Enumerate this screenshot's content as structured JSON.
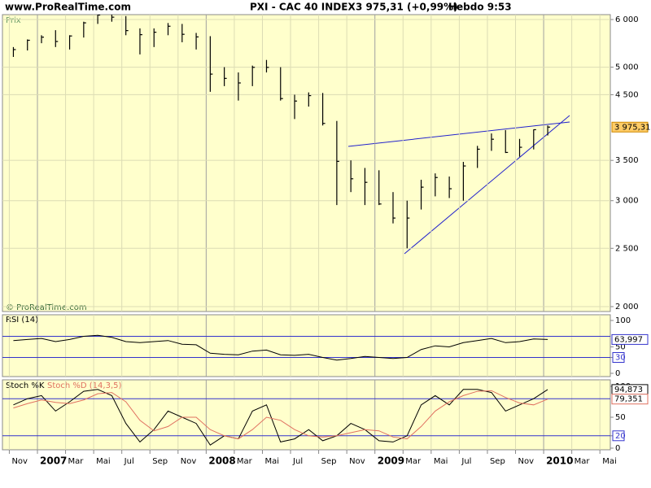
{
  "header": {
    "site": "www.ProRealTime.com",
    "instrument": "PXI - CAC 40 INDEX",
    "quote": "3 975,31 (+0,99%)",
    "period": "Hebdo  9:53"
  },
  "chart_data": [
    {
      "type": "ohlc",
      "label": "Prix",
      "watermark": "© ProRealTime.com",
      "log": true,
      "grid": true,
      "color": "#000000",
      "x": [
        "2006-11",
        "2006-12",
        "2007-01",
        "2007-02",
        "2007-03",
        "2007-04",
        "2007-05",
        "2007-06",
        "2007-07",
        "2007-08",
        "2007-09",
        "2007-10",
        "2007-11",
        "2007-12",
        "2008-01",
        "2008-02",
        "2008-03",
        "2008-04",
        "2008-05",
        "2008-06",
        "2008-07",
        "2008-08",
        "2008-09",
        "2008-10",
        "2008-11",
        "2008-12",
        "2009-01",
        "2009-02",
        "2009-03",
        "2009-04",
        "2009-05",
        "2009-06",
        "2009-07",
        "2009-08",
        "2009-09",
        "2009-10",
        "2009-11",
        "2009-12",
        "2010-01",
        "2010-02",
        "2010-03",
        "2010-04",
        "2010-05"
      ],
      "high": [
        5400,
        5560,
        5650,
        5760,
        5650,
        5950,
        6170,
        6160,
        6080,
        5800,
        5800,
        5920,
        5900,
        5700,
        5630,
        5000,
        4900,
        5030,
        5140,
        5000,
        4500,
        4540,
        4530,
        4070,
        3500,
        3400,
        3370,
        3100,
        3000,
        3250,
        3330,
        3290,
        3480,
        3700,
        3880,
        3930,
        3800,
        3940,
        4000,
        null,
        null,
        null,
        null
      ],
      "low": [
        5200,
        5330,
        5480,
        5400,
        5350,
        5600,
        5900,
        5950,
        5650,
        5250,
        5400,
        5650,
        5500,
        5350,
        4550,
        4650,
        4400,
        4650,
        4900,
        4400,
        4100,
        4300,
        4000,
        2950,
        3100,
        2950,
        2950,
        2750,
        2500,
        2900,
        3050,
        3030,
        3000,
        3400,
        3630,
        3600,
        3550,
        3650,
        3850,
        null,
        null,
        null,
        null
      ],
      "close": [
        5348,
        5542,
        5608,
        5516,
        5634,
        5924,
        6104,
        6054,
        5751,
        5662,
        5715,
        5848,
        5670,
        5614,
        4869,
        4790,
        4707,
        4997,
        4996,
        4434,
        4392,
        4484,
        4032,
        3487,
        3262,
        3218,
        2962,
        2807,
        2807,
        3159,
        3278,
        3140,
        3426,
        3653,
        3795,
        3608,
        3680,
        3936,
        3975.31,
        null,
        null,
        null,
        null
      ],
      "close_label": "3 975,31",
      "close_label_color": "#ffcc66",
      "ylim": [
        2000,
        6000
      ],
      "yticks": [
        {
          "value": 2000,
          "label": "2 000"
        },
        {
          "value": 2500,
          "label": "2 500"
        },
        {
          "value": 3000,
          "label": "3 000"
        },
        {
          "value": 3500,
          "label": "3 500"
        },
        {
          "value": 4500,
          "label": "4 500"
        },
        {
          "value": 5000,
          "label": "5 000"
        },
        {
          "value": 6000,
          "label": "6 000"
        }
      ]
    },
    {
      "type": "line",
      "title": "RSI (14)",
      "color": "#000000",
      "level_color": "#3333cc",
      "values": [
        62,
        64,
        66,
        60,
        64,
        70,
        72,
        68,
        60,
        58,
        60,
        62,
        55,
        54,
        38,
        36,
        35,
        42,
        44,
        35,
        34,
        36,
        30,
        25,
        28,
        32,
        30,
        28,
        30,
        45,
        52,
        50,
        58,
        62,
        66,
        58,
        60,
        65,
        63.997,
        null,
        null,
        null,
        null
      ],
      "value_label": "63,997",
      "ylim": [
        0,
        100
      ],
      "yticks": [
        0,
        30,
        50,
        100
      ],
      "levels": [
        30,
        70
      ]
    },
    {
      "type": "line",
      "level_color": "#3333cc",
      "series": [
        {
          "name": "Stoch %K",
          "color": "#000000",
          "values": [
            70,
            80,
            85,
            60,
            75,
            92,
            95,
            85,
            40,
            10,
            30,
            60,
            50,
            40,
            5,
            20,
            15,
            60,
            70,
            10,
            15,
            30,
            12,
            20,
            40,
            30,
            12,
            10,
            20,
            70,
            85,
            70,
            95,
            95,
            90,
            60,
            70,
            80,
            94.873,
            null,
            null,
            null,
            null
          ],
          "value_label": "94,873"
        },
        {
          "name": "Stoch %D (14,3,5)",
          "color": "#e07060",
          "values": [
            65,
            72,
            78,
            74,
            72,
            78,
            88,
            90,
            75,
            45,
            28,
            35,
            50,
            50,
            30,
            20,
            15,
            30,
            50,
            45,
            30,
            20,
            18,
            20,
            25,
            30,
            28,
            18,
            15,
            35,
            60,
            75,
            85,
            92,
            93,
            82,
            73,
            70,
            79.351,
            null,
            null,
            null,
            null
          ],
          "value_label": "79,351"
        }
      ],
      "ylim": [
        0,
        100
      ],
      "yticks": [
        0,
        20,
        50,
        100
      ],
      "levels": [
        20,
        80
      ],
      "xticks": [
        {
          "value": "2006-11",
          "label": "Nov"
        },
        {
          "value": "2007-01",
          "label": "2007"
        },
        {
          "value": "2007-03",
          "label": "Mar"
        },
        {
          "value": "2007-05",
          "label": "Mai"
        },
        {
          "value": "2007-07",
          "label": "Jul"
        },
        {
          "value": "2007-09",
          "label": "Sep"
        },
        {
          "value": "2007-11",
          "label": "Nov"
        },
        {
          "value": "2008-01",
          "label": "2008"
        },
        {
          "value": "2008-03",
          "label": "Mar"
        },
        {
          "value": "2008-05",
          "label": "Mai"
        },
        {
          "value": "2008-07",
          "label": "Jul"
        },
        {
          "value": "2008-09",
          "label": "Sep"
        },
        {
          "value": "2008-11",
          "label": "Nov"
        },
        {
          "value": "2009-01",
          "label": "2009"
        },
        {
          "value": "2009-03",
          "label": "Mar"
        },
        {
          "value": "2009-05",
          "label": "Mai"
        },
        {
          "value": "2009-07",
          "label": "Jul"
        },
        {
          "value": "2009-09",
          "label": "Sep"
        },
        {
          "value": "2009-11",
          "label": "Nov"
        },
        {
          "value": "2010-01",
          "label": "2010"
        },
        {
          "value": "2010-03",
          "label": "Mar"
        },
        {
          "value": "2010-05",
          "label": "Mai"
        }
      ]
    }
  ]
}
